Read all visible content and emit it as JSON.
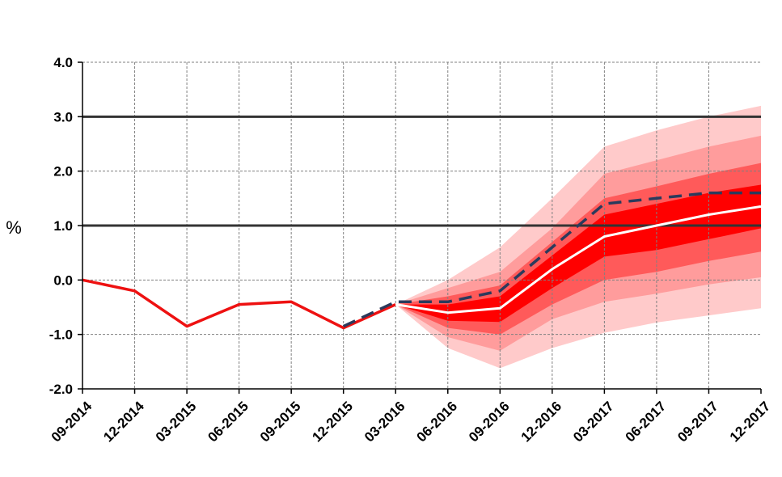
{
  "chart_data": {
    "type": "line",
    "x": [
      "09-2014",
      "12-2014",
      "03-2015",
      "06-2015",
      "09-2015",
      "12-2015",
      "03-2016",
      "06-2016",
      "09-2016",
      "12-2016",
      "03-2017",
      "06-2017",
      "09-2017",
      "12-2017"
    ],
    "ylabel": "%",
    "ylim": [
      -2.0,
      4.0
    ],
    "yticks": [
      "-2.0",
      "-1.0",
      "0.0",
      "1.0",
      "2.0",
      "3.0",
      "4.0"
    ],
    "grid": "dashed",
    "reference_lines": [
      1.0,
      3.0
    ],
    "colors": {
      "historical": "#ee1111",
      "central": "#ffffff",
      "alternative": "#2b3a5c",
      "band_inner": "#ff0000",
      "band_2": "#ff5a5a",
      "band_3": "#ff9c9c",
      "band_outer": "#ffcaca",
      "reference": "#333333",
      "grid": "#808080"
    },
    "series": [
      {
        "role": "historical",
        "values": [
          0.0,
          -0.2,
          -0.85,
          -0.45,
          -0.4,
          -0.88,
          -0.45,
          null,
          null,
          null,
          null,
          null,
          null,
          null
        ]
      },
      {
        "role": "central",
        "values": [
          null,
          null,
          null,
          null,
          null,
          null,
          -0.45,
          -0.6,
          -0.52,
          0.2,
          0.8,
          1.0,
          1.2,
          1.35
        ]
      },
      {
        "role": "alternative",
        "values": [
          null,
          null,
          null,
          null,
          null,
          -0.85,
          -0.4,
          -0.4,
          -0.2,
          0.6,
          1.4,
          1.5,
          1.6,
          1.6
        ]
      }
    ],
    "fan_bands": [
      {
        "level": "band_inner",
        "lower": [
          null,
          null,
          null,
          null,
          null,
          null,
          -0.45,
          -0.75,
          -0.77,
          -0.15,
          0.43,
          0.55,
          0.75,
          0.95
        ],
        "upper": [
          null,
          null,
          null,
          null,
          null,
          null,
          -0.45,
          -0.45,
          -0.3,
          0.45,
          1.2,
          1.4,
          1.6,
          1.75
        ]
      },
      {
        "level": "band_2",
        "lower": [
          null,
          null,
          null,
          null,
          null,
          null,
          -0.45,
          -0.88,
          -1.0,
          -0.45,
          0.0,
          0.15,
          0.35,
          0.52
        ],
        "upper": [
          null,
          null,
          null,
          null,
          null,
          null,
          -0.45,
          -0.3,
          -0.1,
          0.7,
          1.5,
          1.72,
          1.95,
          2.15
        ]
      },
      {
        "level": "band_3",
        "lower": [
          null,
          null,
          null,
          null,
          null,
          null,
          -0.45,
          -1.05,
          -1.3,
          -0.72,
          -0.4,
          -0.25,
          -0.08,
          0.05
        ],
        "upper": [
          null,
          null,
          null,
          null,
          null,
          null,
          -0.45,
          -0.15,
          0.15,
          0.95,
          1.95,
          2.2,
          2.45,
          2.65
        ]
      },
      {
        "level": "band_outer",
        "lower": [
          null,
          null,
          null,
          null,
          null,
          null,
          -0.45,
          -1.25,
          -1.62,
          -1.25,
          -0.97,
          -0.78,
          -0.65,
          -0.52
        ],
        "upper": [
          null,
          null,
          null,
          null,
          null,
          null,
          -0.45,
          0.0,
          0.6,
          1.5,
          2.45,
          2.75,
          3.0,
          3.2
        ]
      }
    ]
  }
}
